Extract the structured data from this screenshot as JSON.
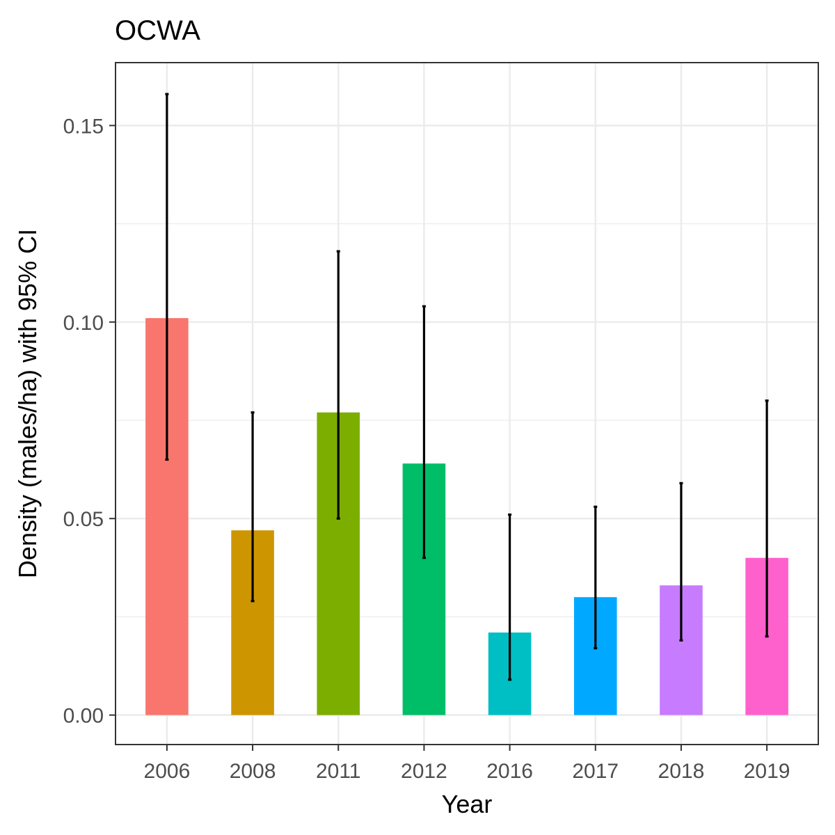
{
  "chart_data": {
    "type": "bar",
    "title": "OCWA",
    "xlabel": "Year",
    "ylabel": "Density (males/ha) with 95% CI",
    "categories": [
      "2006",
      "2008",
      "2011",
      "2012",
      "2016",
      "2017",
      "2018",
      "2019"
    ],
    "values": [
      0.101,
      0.047,
      0.077,
      0.064,
      0.021,
      0.03,
      0.033,
      0.04
    ],
    "ci_lower": [
      0.065,
      0.029,
      0.05,
      0.04,
      0.009,
      0.017,
      0.019,
      0.02
    ],
    "ci_upper": [
      0.158,
      0.077,
      0.118,
      0.104,
      0.051,
      0.053,
      0.059,
      0.08
    ],
    "ylim": [
      -0.0075,
      0.166
    ],
    "yticks": [
      0.0,
      0.05,
      0.1,
      0.15
    ],
    "ytick_labels": [
      "0.00",
      "0.05",
      "0.10",
      "0.15"
    ],
    "colors": [
      "#F8766D",
      "#CD9600",
      "#7CAE00",
      "#00BE67",
      "#00BFC4",
      "#00A9FF",
      "#C77CFF",
      "#FF61CC"
    ],
    "error_bar_color": "#000000",
    "grid": true,
    "legend": "none"
  }
}
